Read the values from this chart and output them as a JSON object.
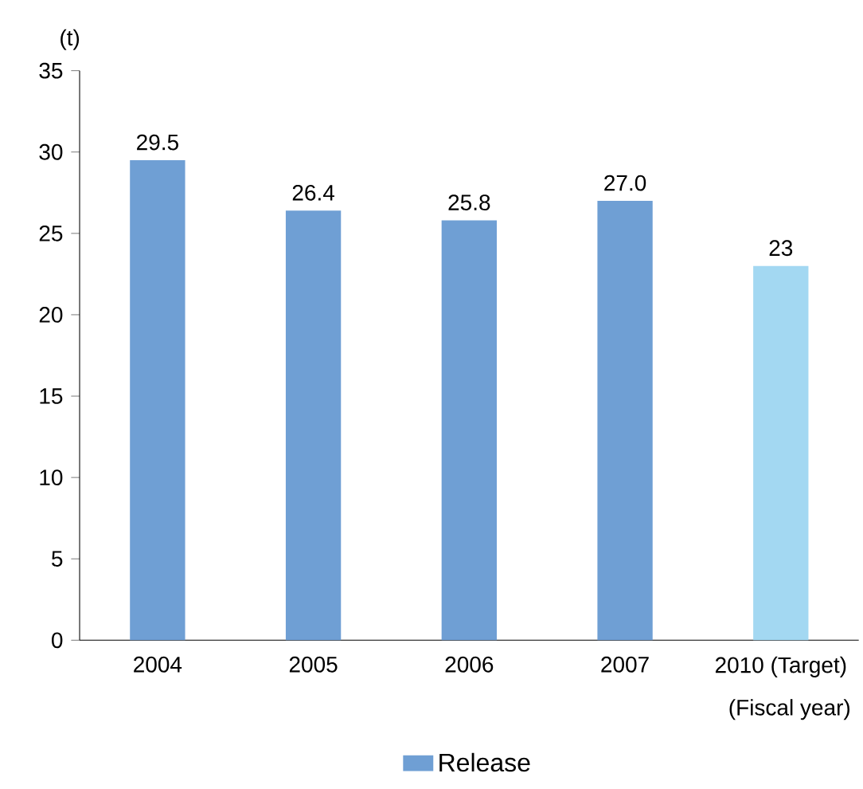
{
  "chart_data": {
    "type": "bar",
    "ylabel": "(t)",
    "categories": [
      "2004",
      "2005",
      "2006",
      "2007",
      "2010 (Target)"
    ],
    "series": [
      {
        "name": "Release",
        "color": "#6f9fd4",
        "colors": [
          "#6f9fd4",
          "#6f9fd4",
          "#6f9fd4",
          "#6f9fd4",
          "#a3d8f2"
        ],
        "values": [
          29.5,
          26.4,
          25.8,
          27.0,
          23
        ],
        "value_labels": [
          "29.5",
          "26.4",
          "25.8",
          "27.0",
          "23"
        ]
      }
    ],
    "ylim": [
      0,
      35
    ],
    "yticks": [
      0,
      5,
      10,
      15,
      20,
      25,
      30,
      35
    ],
    "grid": false,
    "legend": "bottom",
    "annotations": [
      "(Fiscal year)"
    ]
  }
}
